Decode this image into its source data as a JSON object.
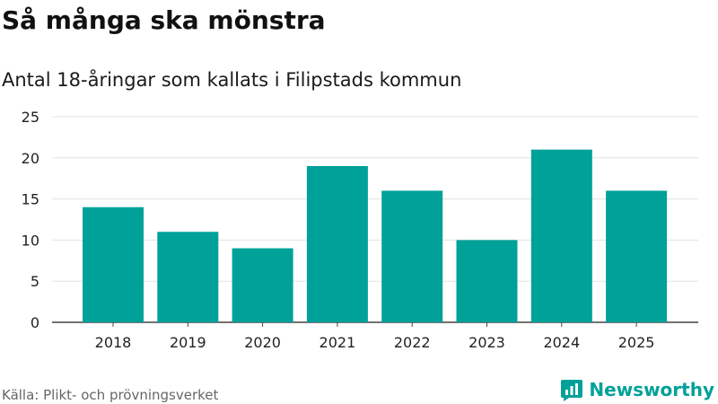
{
  "title": "Så många ska mönstra",
  "subtitle": "Antal 18-åringar som kallats i Filipstads kommun",
  "source": "Källa: Plikt- och prövningsverket",
  "brand": {
    "name": "Newsworthy",
    "icon": "newsworthy-chart-icon",
    "color": "#00a199"
  },
  "chart_data": {
    "type": "bar",
    "title": "Så många ska mönstra",
    "subtitle": "Antal 18-åringar som kallats i Filipstads kommun",
    "categories": [
      "2018",
      "2019",
      "2020",
      "2021",
      "2022",
      "2023",
      "2024",
      "2025"
    ],
    "values": [
      14,
      11,
      9,
      19,
      16,
      10,
      21,
      16
    ],
    "xlabel": "",
    "ylabel": "",
    "ylim": [
      0,
      25
    ],
    "yticks": [
      "0",
      "5",
      "10",
      "15",
      "20",
      "25"
    ],
    "grid": true,
    "bar_color": "#00a199"
  }
}
